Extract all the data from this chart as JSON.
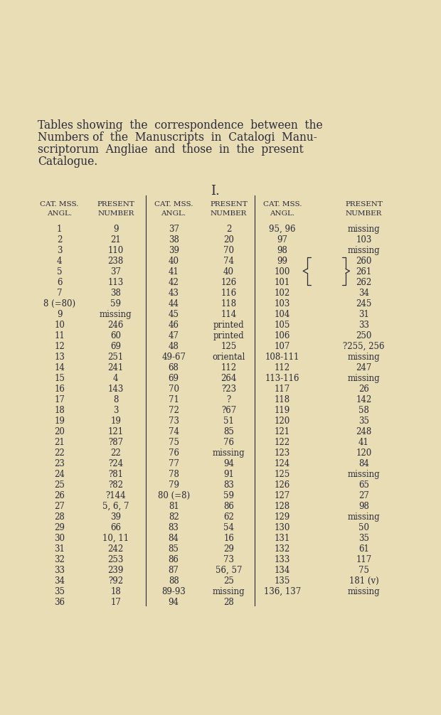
{
  "bg_color": "#e8ddb5",
  "title_lines": [
    "Tables showing  the  correspondence  between  the",
    "Numbers of  the  Manuscripts  in  Catalogi  Manu-",
    "scriptorum  Angliae  and  those  in  the  present",
    "Catalogue."
  ],
  "section_label": "I.",
  "headers": [
    [
      "CAT. MSS.",
      "ANGL."
    ],
    [
      "PRESENT",
      "NUMBER"
    ],
    [
      "CAT. MSS.",
      "ANGL."
    ],
    [
      "PRESENT",
      "NUMBER"
    ],
    [
      "CAT. MSS.",
      "ANGL."
    ],
    [
      "PRESENT",
      "NUMBER"
    ]
  ],
  "rows": [
    [
      "1",
      "9",
      "37",
      "2",
      "95, 96",
      "missing"
    ],
    [
      "2",
      "21",
      "38",
      "20",
      "97",
      "103"
    ],
    [
      "3",
      "110",
      "39",
      "70",
      "98",
      "missing"
    ],
    [
      "4",
      "238",
      "40",
      "74",
      "99",
      "260"
    ],
    [
      "5",
      "37",
      "41",
      "40",
      "100",
      "261"
    ],
    [
      "6",
      "113",
      "42",
      "126",
      "101",
      "262"
    ],
    [
      "7",
      "38",
      "43",
      "116",
      "102",
      "34"
    ],
    [
      "8 (=80)",
      "59",
      "44",
      "118",
      "103",
      "245"
    ],
    [
      "9",
      "missing",
      "45",
      "114",
      "104",
      "31"
    ],
    [
      "10",
      "246",
      "46",
      "printed",
      "105",
      "33"
    ],
    [
      "11",
      "60",
      "47",
      "printed",
      "106",
      "250"
    ],
    [
      "12",
      "69",
      "48",
      "125",
      "107",
      "?255, 256"
    ],
    [
      "13",
      "251",
      "49-67",
      "oriental",
      "108-111",
      "missing"
    ],
    [
      "14",
      "241",
      "68",
      "112",
      "112",
      "247"
    ],
    [
      "15",
      "4",
      "69",
      "264",
      "113-116",
      "missing"
    ],
    [
      "16",
      "143",
      "70",
      "?23",
      "117",
      "26"
    ],
    [
      "17",
      "8",
      "71",
      "?",
      "118",
      "142"
    ],
    [
      "18",
      "3",
      "72",
      "?67",
      "119",
      "58"
    ],
    [
      "19",
      "19",
      "73",
      "51",
      "120",
      "35"
    ],
    [
      "20",
      "121",
      "74",
      "85",
      "121",
      "248"
    ],
    [
      "21",
      "?87",
      "75",
      "76",
      "122",
      "41"
    ],
    [
      "22",
      "22",
      "76",
      "missing",
      "123",
      "120"
    ],
    [
      "23",
      "?24",
      "77",
      "94",
      "124",
      "84"
    ],
    [
      "24",
      "?81",
      "78",
      "91",
      "125",
      "missing"
    ],
    [
      "25",
      "?82",
      "79",
      "83",
      "126",
      "65"
    ],
    [
      "26",
      "?144",
      "80 (=8)",
      "59",
      "127",
      "27"
    ],
    [
      "27",
      "5, 6, 7",
      "81",
      "86",
      "128",
      "98"
    ],
    [
      "28",
      "39",
      "82",
      "62",
      "129",
      "missing"
    ],
    [
      "29",
      "66",
      "83",
      "54",
      "130",
      "50"
    ],
    [
      "30",
      "10, 11",
      "84",
      "16",
      "131",
      "35"
    ],
    [
      "31",
      "242",
      "85",
      "29",
      "132",
      "61"
    ],
    [
      "32",
      "253",
      "86",
      "73",
      "133",
      "117"
    ],
    [
      "33",
      "239",
      "87",
      "56, 57",
      "134",
      "75"
    ],
    [
      "34",
      "?92",
      "88",
      "25",
      "135",
      "181 (v)"
    ],
    [
      "35",
      "18",
      "89-93",
      "missing",
      "136, 137",
      "missing"
    ],
    [
      "36",
      "17",
      "94",
      "28",
      "",
      ""
    ]
  ],
  "bracket_rows": [
    3,
    4,
    5
  ],
  "text_color": "#2a2a3a",
  "font_size_title": 11.2,
  "font_size_header": 7.5,
  "font_size_data": 8.5
}
